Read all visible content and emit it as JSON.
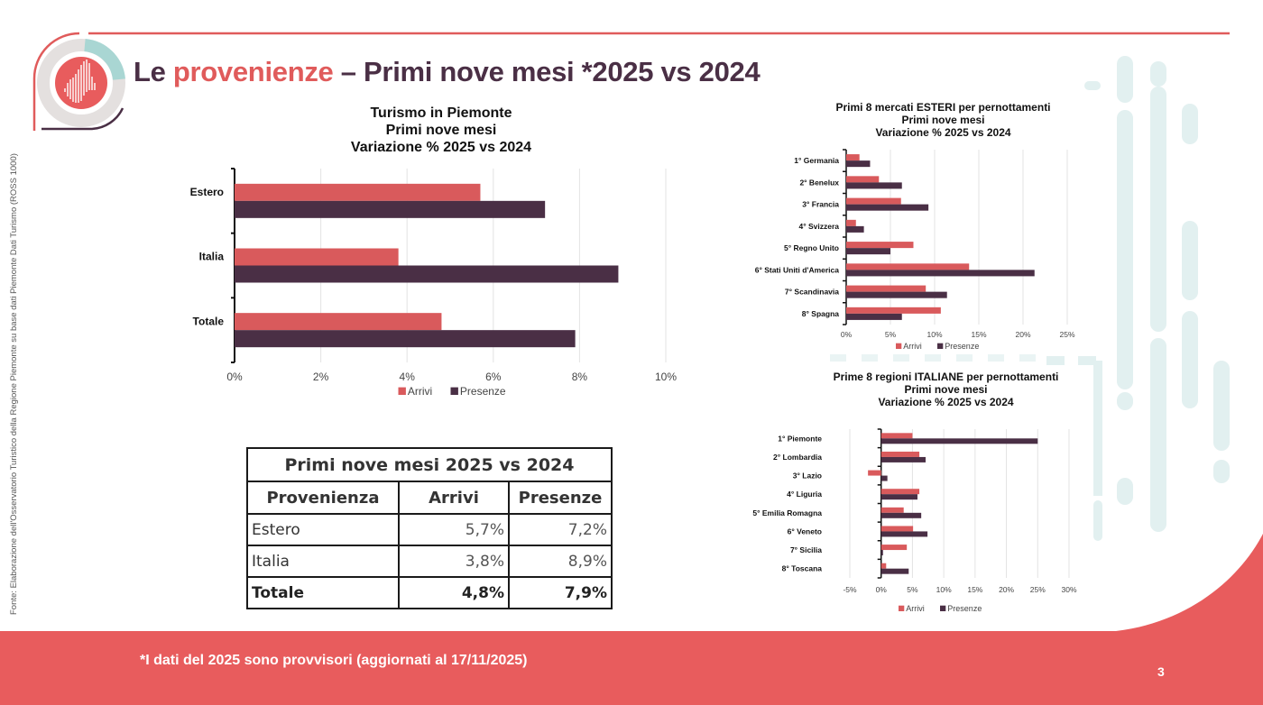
{
  "header": {
    "title_prefix": "Le ",
    "title_accent": "provenienze",
    "title_suffix": " – Primi nove mesi *2025 vs 2024"
  },
  "logo": {
    "icon": "piemonte-region-icon"
  },
  "source_note": "Fonte: Elaborazione dell'Osservatorio Turistico della Regione Piemonte su base dati Piemonte Dati Turismo (ROSS 1000)",
  "footer": {
    "note": "*I dati del 2025 sono provvisori (aggiornati al 17/11/2025)",
    "page_number": "3"
  },
  "colors": {
    "arrivi": "#d95a5c",
    "presenze": "#4a2f45",
    "brand_red": "#e85c5d",
    "brand_teal": "#a9d6d3",
    "title_dark": "#4a2f45"
  },
  "summary_table": {
    "caption": "Primi nove mesi 2025 vs 2024",
    "headers": [
      "Provenienza",
      "Arrivi",
      "Presenze"
    ],
    "rows": [
      {
        "name": "Estero",
        "arrivi": "5,7%",
        "presenze": "7,2%",
        "bold": false
      },
      {
        "name": "Italia",
        "arrivi": "3,8%",
        "presenze": "8,9%",
        "bold": false
      },
      {
        "name": "Totale",
        "arrivi": "4,8%",
        "presenze": "7,9%",
        "bold": true
      }
    ]
  },
  "chart_data": [
    {
      "id": "main",
      "type": "bar",
      "orientation": "horizontal",
      "title_lines": [
        "Turismo in Piemonte",
        "Primi nove mesi",
        "Variazione % 2025 vs 2024"
      ],
      "categories": [
        "Estero",
        "Italia",
        "Totale"
      ],
      "series": [
        {
          "name": "Arrivi",
          "values": [
            5.7,
            3.8,
            4.8
          ]
        },
        {
          "name": "Presenze",
          "values": [
            7.2,
            8.9,
            7.9
          ]
        }
      ],
      "xlim": [
        0,
        10
      ],
      "xticks": [
        0,
        2,
        4,
        6,
        8,
        10
      ],
      "tick_format": "percent",
      "grid": true,
      "legend": "bottom",
      "xlabel": "",
      "ylabel": ""
    },
    {
      "id": "esteri",
      "type": "bar",
      "orientation": "horizontal",
      "title_lines": [
        "Primi 8 mercati ESTERI per pernottamenti",
        "Primi nove mesi",
        "Variazione % 2025 vs 2024"
      ],
      "categories": [
        "1° Germania",
        "2° Benelux",
        "3° Francia",
        "4° Svizzera",
        "5° Regno Unito",
        "6° Stati Uniti d'America",
        "7° Scandinavia",
        "8° Spagna"
      ],
      "series": [
        {
          "name": "Arrivi",
          "values": [
            1.5,
            3.7,
            6.2,
            1.1,
            7.6,
            13.9,
            9.0,
            10.7
          ]
        },
        {
          "name": "Presenze",
          "values": [
            2.7,
            6.3,
            9.3,
            2.0,
            5.0,
            21.3,
            11.4,
            6.3
          ]
        }
      ],
      "xlim": [
        0,
        25
      ],
      "xticks": [
        0,
        5,
        10,
        15,
        20,
        25
      ],
      "tick_format": "percent",
      "grid": true,
      "legend": "bottom",
      "xlabel": "",
      "ylabel": ""
    },
    {
      "id": "italiane",
      "type": "bar",
      "orientation": "horizontal",
      "title_lines": [
        "Prime 8 regioni ITALIANE per pernottamenti",
        "Primi nove mesi",
        "Variazione % 2025 vs 2024"
      ],
      "categories": [
        "1° Piemonte",
        "2° Lombardia",
        "3° Lazio",
        "4° Liguria",
        "5° Emilia Romagna",
        "6° Veneto",
        "7° Sicilia",
        "8° Toscana"
      ],
      "series": [
        {
          "name": "Arrivi",
          "values": [
            5.0,
            6.1,
            -2.1,
            6.1,
            3.6,
            5.1,
            4.1,
            0.8
          ]
        },
        {
          "name": "Presenze",
          "values": [
            25.0,
            7.1,
            1.0,
            5.8,
            6.4,
            7.4,
            0.3,
            4.4
          ]
        }
      ],
      "xlim": [
        -5,
        30
      ],
      "xticks": [
        -5,
        0,
        5,
        10,
        15,
        20,
        25,
        30
      ],
      "tick_format": "percent",
      "grid": true,
      "legend": "bottom",
      "xlabel": "",
      "ylabel": ""
    }
  ]
}
